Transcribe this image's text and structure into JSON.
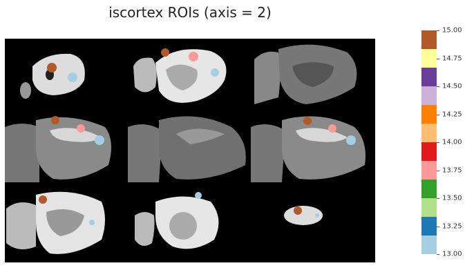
{
  "title": "iscortex ROIs (axis = 2)",
  "colorbar": {
    "colors": [
      "#a6cee3",
      "#1f78b4",
      "#b2df8a",
      "#33a02c",
      "#fb9a99",
      "#e31a1c",
      "#fdbf6f",
      "#ff7f00",
      "#cab2d6",
      "#6a3d9a",
      "#ffff99",
      "#b15928"
    ],
    "min": 13.0,
    "max": 15.0,
    "ticks": [
      "13.00",
      "13.25",
      "13.50",
      "13.75",
      "14.00",
      "14.25",
      "14.50",
      "14.75",
      "15.00"
    ]
  },
  "roi_colors": {
    "roi_13_00": "#a6cee3",
    "roi_13_75": "#fb9a99",
    "roi_15_00": "#b15928"
  }
}
